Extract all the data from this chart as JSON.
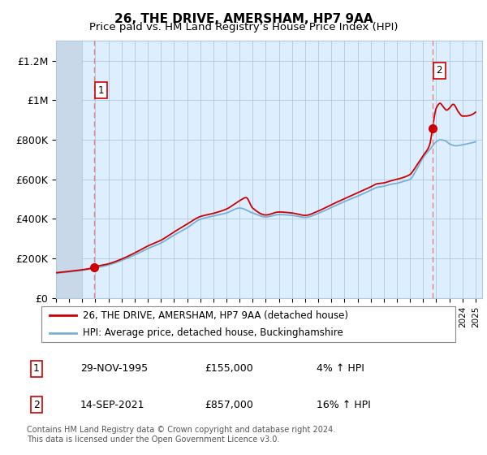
{
  "title": "26, THE DRIVE, AMERSHAM, HP7 9AA",
  "subtitle": "Price paid vs. HM Land Registry’s House Price Index (HPI)",
  "legend_line1": "26, THE DRIVE, AMERSHAM, HP7 9AA (detached house)",
  "legend_line2": "HPI: Average price, detached house, Buckinghamshire",
  "footer": "Contains HM Land Registry data © Crown copyright and database right 2024.\nThis data is licensed under the Open Government Licence v3.0.",
  "sale1_date": "29-NOV-1995",
  "sale1_price": 155000,
  "sale1_hpi": "4% ↑ HPI",
  "sale2_date": "14-SEP-2021",
  "sale2_price": 857000,
  "sale2_hpi": "16% ↑ HPI",
  "price_color": "#cc0000",
  "hpi_color": "#7ab0d4",
  "dashed_line_color": "#e88080",
  "bg_color": "#ddeeff",
  "hatch_color": "#c8d8e8",
  "grid_color": "#aec8e0",
  "ylim": [
    0,
    1300000
  ],
  "yticks": [
    0,
    200000,
    400000,
    600000,
    800000,
    1000000,
    1200000
  ],
  "ytick_labels": [
    "£0",
    "£200K",
    "£400K",
    "£600K",
    "£800K",
    "£1M",
    "£1.2M"
  ],
  "xstart": 1993.0,
  "xend": 2025.5,
  "sale1_x": 1995.91,
  "sale2_x": 2021.71
}
